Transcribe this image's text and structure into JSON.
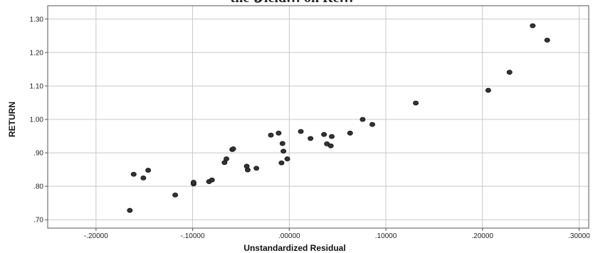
{
  "chart_data": {
    "type": "scatter",
    "title": "",
    "xlabel": "Unstandardized Residual",
    "ylabel": "RETURN",
    "xlim": [
      -0.25,
      0.31
    ],
    "ylim": [
      0.675,
      1.34
    ],
    "x_ticks": [
      {
        "value": -0.2,
        "label": "-.20000"
      },
      {
        "value": -0.1,
        "label": "-.10000"
      },
      {
        "value": 0.0,
        "label": ".00000"
      },
      {
        "value": 0.1,
        "label": ".10000"
      },
      {
        "value": 0.2,
        "label": ".20000"
      },
      {
        "value": 0.3,
        "label": ".30000"
      }
    ],
    "y_ticks": [
      {
        "value": 0.7,
        "label": ".70"
      },
      {
        "value": 0.8,
        "label": ".80"
      },
      {
        "value": 0.9,
        "label": ".90"
      },
      {
        "value": 1.0,
        "label": "1.00"
      },
      {
        "value": 1.1,
        "label": "1.10"
      },
      {
        "value": 1.2,
        "label": "1.20"
      },
      {
        "value": 1.3,
        "label": "1.30"
      }
    ],
    "grid": true,
    "marker_color": "#333333",
    "points": [
      {
        "x": -0.165,
        "y": 0.728
      },
      {
        "x": -0.161,
        "y": 0.836
      },
      {
        "x": -0.151,
        "y": 0.825
      },
      {
        "x": -0.146,
        "y": 0.848
      },
      {
        "x": -0.118,
        "y": 0.774
      },
      {
        "x": -0.099,
        "y": 0.807
      },
      {
        "x": -0.099,
        "y": 0.812
      },
      {
        "x": -0.083,
        "y": 0.814
      },
      {
        "x": -0.08,
        "y": 0.819
      },
      {
        "x": -0.067,
        "y": 0.871
      },
      {
        "x": -0.065,
        "y": 0.882
      },
      {
        "x": -0.059,
        "y": 0.91
      },
      {
        "x": -0.058,
        "y": 0.912
      },
      {
        "x": -0.044,
        "y": 0.86
      },
      {
        "x": -0.043,
        "y": 0.849
      },
      {
        "x": -0.034,
        "y": 0.854
      },
      {
        "x": -0.019,
        "y": 0.953
      },
      {
        "x": -0.011,
        "y": 0.959
      },
      {
        "x": -0.008,
        "y": 0.87
      },
      {
        "x": -0.007,
        "y": 0.928
      },
      {
        "x": -0.006,
        "y": 0.905
      },
      {
        "x": -0.002,
        "y": 0.882
      },
      {
        "x": 0.012,
        "y": 0.964
      },
      {
        "x": 0.022,
        "y": 0.943
      },
      {
        "x": 0.036,
        "y": 0.955
      },
      {
        "x": 0.039,
        "y": 0.927
      },
      {
        "x": 0.043,
        "y": 0.921
      },
      {
        "x": 0.044,
        "y": 0.949
      },
      {
        "x": 0.063,
        "y": 0.959
      },
      {
        "x": 0.076,
        "y": 1.0
      },
      {
        "x": 0.086,
        "y": 0.985
      },
      {
        "x": 0.131,
        "y": 1.049
      },
      {
        "x": 0.206,
        "y": 1.087
      },
      {
        "x": 0.228,
        "y": 1.141
      },
      {
        "x": 0.252,
        "y": 1.28
      },
      {
        "x": 0.267,
        "y": 1.237
      }
    ]
  }
}
